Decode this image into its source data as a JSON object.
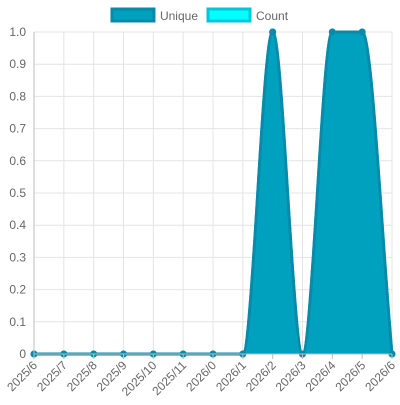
{
  "chart_data": {
    "type": "area",
    "x": [
      "2025/6",
      "2025/7",
      "2025/8",
      "2025/9",
      "2025/10",
      "2025/11",
      "2026/0",
      "2026/1",
      "2026/2",
      "2026/3",
      "2026/4",
      "2026/5",
      "2026/6"
    ],
    "series": [
      {
        "name": "Unique",
        "values": [
          0,
          0,
          0,
          0,
          0,
          0,
          0,
          0,
          1,
          0,
          1,
          1,
          0
        ],
        "color": "#00a0bf",
        "line_color": "#0a8aa8"
      },
      {
        "name": "Count",
        "values": [
          0,
          0,
          0,
          0,
          0,
          0,
          0,
          0,
          1,
          0,
          1,
          1,
          0
        ],
        "color": "#00ffff",
        "line_color": "#00c6d9"
      }
    ],
    "ylim": [
      0,
      1.0
    ],
    "yticks": [
      "0",
      "0.1",
      "0.2",
      "0.3",
      "0.4",
      "0.5",
      "0.6",
      "0.7",
      "0.8",
      "0.9",
      "1.0"
    ],
    "grid": true,
    "legend": "top-center",
    "smooth": true
  }
}
